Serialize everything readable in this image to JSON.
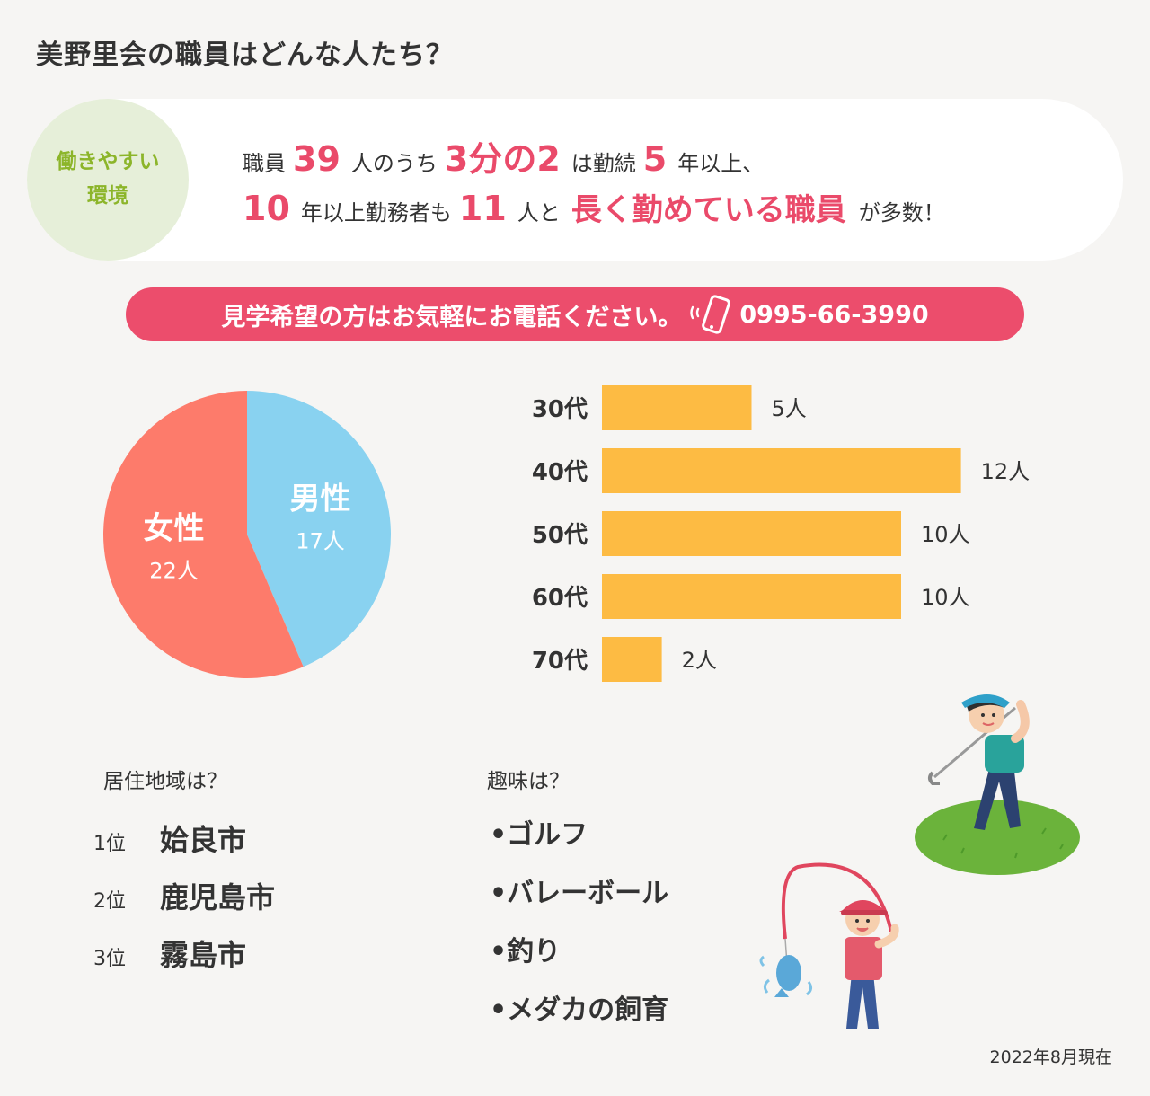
{
  "title": "美野里会の職員はどんな人たち？",
  "badge": {
    "line1": "働きやすい",
    "line2": "環境"
  },
  "summary": {
    "line1": [
      {
        "t": "職員",
        "hl": false
      },
      {
        "t": "39",
        "hl": true
      },
      {
        "t": "人のうち",
        "hl": false
      },
      {
        "t": "3分の2",
        "hl": true
      },
      {
        "t": "は勤続",
        "hl": false
      },
      {
        "t": "5",
        "hl": true
      },
      {
        "t": "年以上、",
        "hl": false
      }
    ],
    "line2": [
      {
        "t": "10",
        "hl": true
      },
      {
        "t": "年以上勤務者も",
        "hl": false
      },
      {
        "t": "11",
        "hl": true
      },
      {
        "t": "人と",
        "hl": false
      },
      {
        "t": "長く勤めている職員",
        "hl": true
      },
      {
        "t": "が多数！",
        "hl": false
      }
    ]
  },
  "cta": {
    "text": "見学希望の方はお気軽にお電話ください。",
    "phone": "0995-66-3990"
  },
  "chart_data": [
    {
      "type": "pie",
      "categories": [
        "男性",
        "女性"
      ],
      "values": [
        17,
        22
      ],
      "value_labels": [
        "17人",
        "22人"
      ],
      "colors": [
        "#89d2f0",
        "#fd7b6b"
      ]
    },
    {
      "type": "bar",
      "orientation": "horizontal",
      "categories": [
        "30代",
        "40代",
        "50代",
        "60代",
        "70代"
      ],
      "values": [
        5,
        12,
        10,
        10,
        2
      ],
      "value_labels": [
        "5人",
        "12人",
        "10人",
        "10人",
        "2人"
      ],
      "color": "#fdbb43"
    }
  ],
  "residence": {
    "heading": "居住地域は？",
    "items": [
      {
        "rank": "1位",
        "city": "姶良市"
      },
      {
        "rank": "2位",
        "city": "鹿児島市"
      },
      {
        "rank": "3位",
        "city": "霧島市"
      }
    ]
  },
  "hobbies": {
    "heading": "趣味は？",
    "items": [
      "•ゴルフ",
      "•バレーボール",
      "•釣り",
      "•メダカの飼育"
    ]
  },
  "footnote": "2022年8月現在",
  "colors": {
    "accent": "#ec4d6c",
    "green": "#8cb52a",
    "bar": "#fdbb43"
  },
  "illustrations": [
    "golfer-illustration",
    "angler-illustration"
  ]
}
